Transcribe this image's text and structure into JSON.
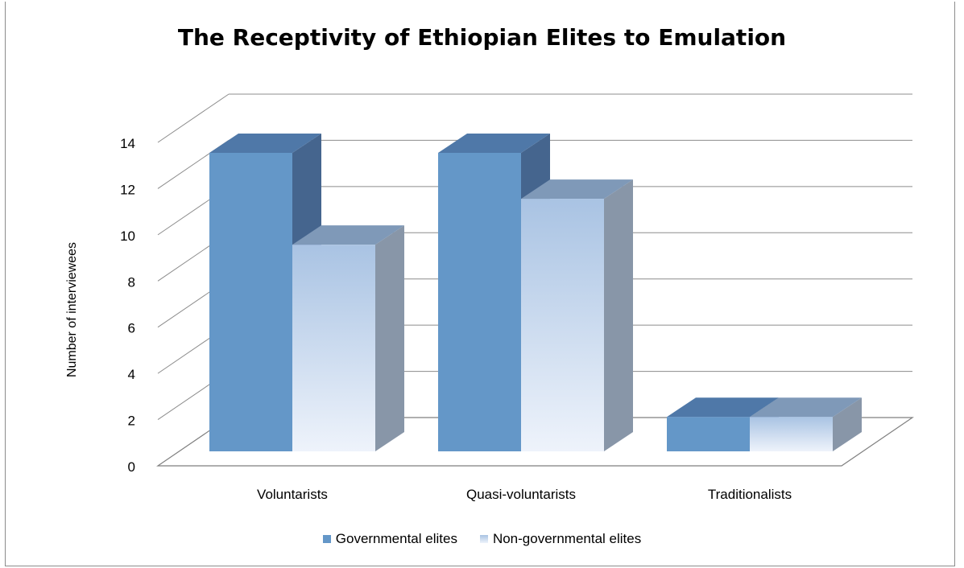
{
  "chart_data": {
    "type": "bar",
    "title": "The Receptivity of Ethiopian Elites to Emulation",
    "xlabel": "",
    "ylabel": "Number of interviewees",
    "categories": [
      "Voluntarists",
      "Quasi-voluntarists",
      "Traditionalists"
    ],
    "series": [
      {
        "name": "Governmental elites",
        "values": [
          13,
          13,
          1.5
        ],
        "color": "#6497c8"
      },
      {
        "name": "Non-governmental elites",
        "values": [
          9,
          11,
          1.5
        ],
        "color": "#c9d7ec"
      }
    ],
    "ylim": [
      0,
      14
    ],
    "yticks": [
      "0",
      "2",
      "4",
      "6",
      "8",
      "10",
      "12",
      "14"
    ],
    "grid": true,
    "legend_position": "bottom",
    "style": "3d-clustered-column"
  }
}
